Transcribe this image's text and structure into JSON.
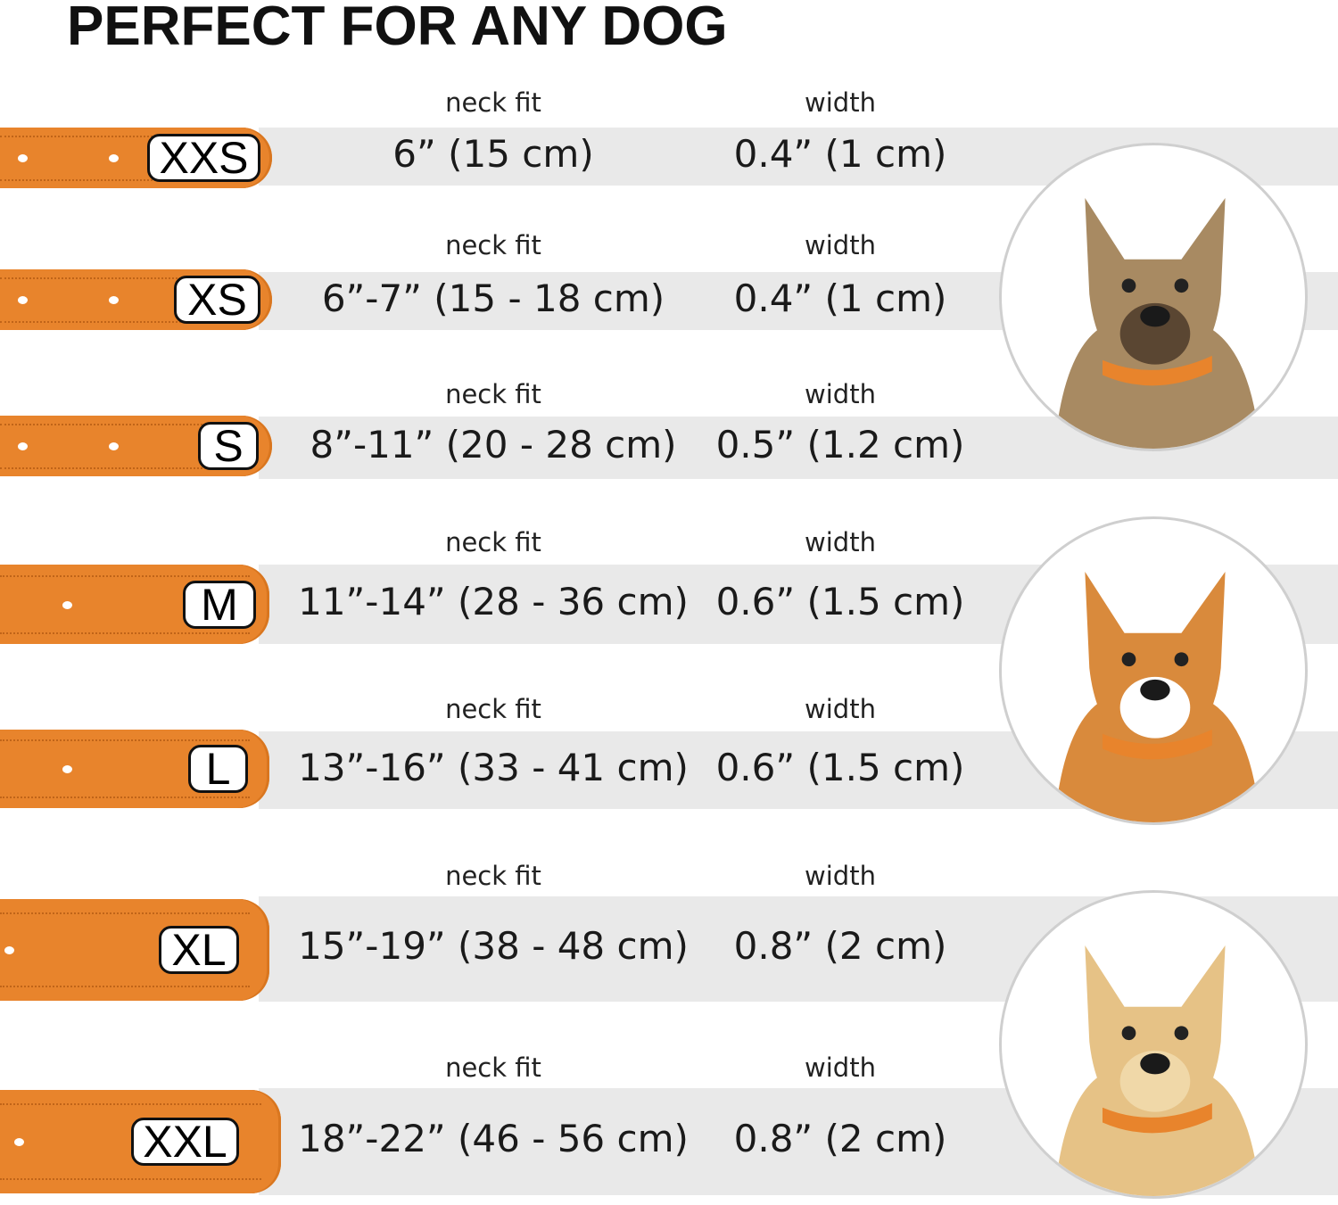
{
  "title": "PERFECT FOR ANY DOG",
  "colors": {
    "collar": "#e8842c",
    "band": "#e9e9e9"
  },
  "labels": {
    "neck": "neck fit",
    "width": "width"
  },
  "sizes": [
    {
      "size": "XXS",
      "neck": "6” (15 cm)",
      "width": "0.4” (1 cm)"
    },
    {
      "size": "XS",
      "neck": "6”-7” (15 - 18 cm)",
      "width": "0.4” (1 cm)"
    },
    {
      "size": "S",
      "neck": "8”-11” (20 - 28 cm)",
      "width": "0.5” (1.2 cm)"
    },
    {
      "size": "M",
      "neck": "11”-14” (28 - 36 cm)",
      "width": "0.6” (1.5 cm)"
    },
    {
      "size": "L",
      "neck": "13”-16” (33 - 41 cm)",
      "width": "0.6” (1.5 cm)"
    },
    {
      "size": "XL",
      "neck": "15”-19” (38 - 48 cm)",
      "width": "0.8” (2 cm)"
    },
    {
      "size": "XXL",
      "neck": "18”-22” (46 - 56 cm)",
      "width": "0.8” (2 cm)"
    }
  ],
  "photos": [
    "small-terrier-photo",
    "corgi-photo",
    "labrador-photo"
  ]
}
